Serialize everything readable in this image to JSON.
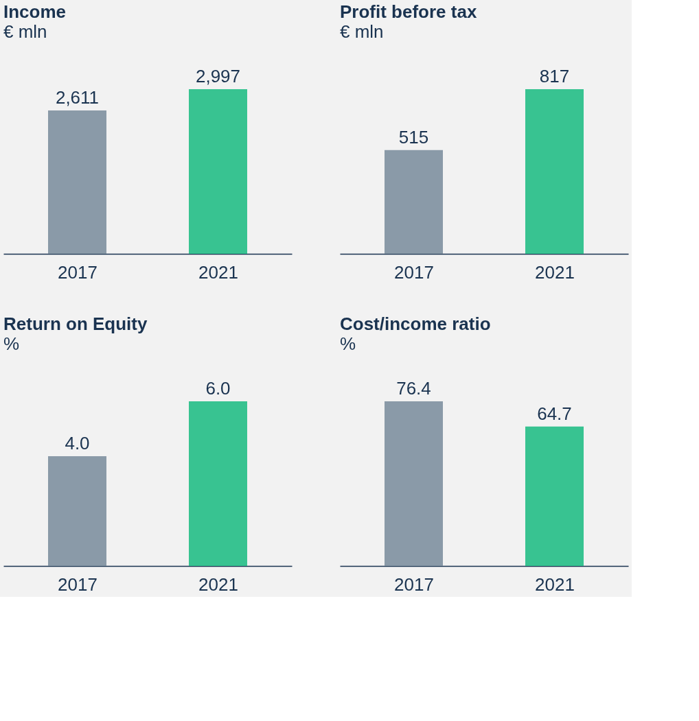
{
  "chart_data": [
    {
      "type": "bar",
      "title": "Income",
      "subtitle": "€ mln",
      "categories": [
        "2017",
        "2021"
      ],
      "values": [
        2611,
        2997
      ],
      "colors": [
        "#8a9aa8",
        "#38c391"
      ],
      "data_labels": true,
      "value_labels": [
        "2,611",
        "2,997"
      ]
    },
    {
      "type": "bar",
      "title": "Profit before tax",
      "subtitle": "€ mln",
      "categories": [
        "2017",
        "2021"
      ],
      "values": [
        515,
        817
      ],
      "colors": [
        "#8a9aa8",
        "#38c391"
      ],
      "data_labels": true
    },
    {
      "type": "bar",
      "title": "Return on Equity",
      "subtitle": "%",
      "categories": [
        "2017",
        "2021"
      ],
      "values": [
        4.0,
        6.0
      ],
      "colors": [
        "#8a9aa8",
        "#38c391"
      ],
      "data_labels": true,
      "value_labels": [
        "4.0",
        "6.0"
      ]
    },
    {
      "type": "bar",
      "title": "Cost/income ratio",
      "subtitle": "%",
      "categories": [
        "2017",
        "2021"
      ],
      "values": [
        76.4,
        64.7
      ],
      "colors": [
        "#8a9aa8",
        "#38c391"
      ],
      "data_labels": true
    }
  ]
}
